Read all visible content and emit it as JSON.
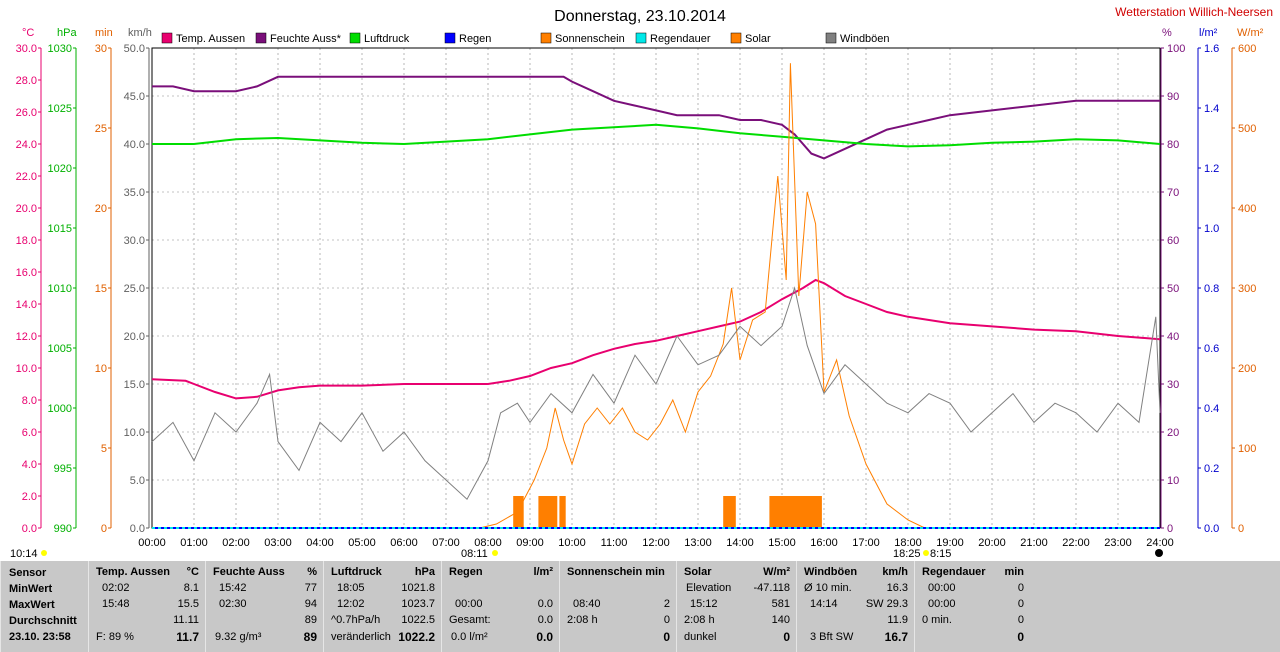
{
  "title": "Donnerstag, 23.10.2014",
  "station": "Wetterstation Willich-Neersen",
  "legend": [
    {
      "label": "Temp. Aussen",
      "color": "#e8006f"
    },
    {
      "label": "Feuchte Auss*",
      "color": "#7a0f7a"
    },
    {
      "label": "Luftdruck",
      "color": "#00dd00"
    },
    {
      "label": "Regen",
      "color": "#0000ff"
    },
    {
      "label": "Sonnenschein",
      "color": "#ff7f00"
    },
    {
      "label": "Regendauer",
      "color": "#00e8e8"
    },
    {
      "label": "Solar",
      "color": "#ff7f00"
    },
    {
      "label": "Windböen",
      "color": "#808080"
    }
  ],
  "axes_left": [
    {
      "unit": "°C",
      "color": "#e8006f",
      "ticks": [
        "30.0",
        "28.0",
        "26.0",
        "24.0",
        "22.0",
        "20.0",
        "18.0",
        "16.0",
        "14.0",
        "12.0",
        "10.0",
        "8.0",
        "6.0",
        "4.0",
        "2.0",
        "0.0"
      ]
    },
    {
      "unit": "hPa",
      "color": "#00b000",
      "ticks": [
        "1030",
        "1025",
        "1020",
        "1015",
        "1010",
        "1005",
        "1000",
        "995",
        "990"
      ]
    },
    {
      "unit": "min",
      "color": "#e06000",
      "ticks": [
        "30",
        "25",
        "20",
        "15",
        "10",
        "5",
        "0"
      ]
    },
    {
      "unit": "km/h",
      "color": "#606060",
      "ticks": [
        "50.0",
        "45.0",
        "40.0",
        "35.0",
        "30.0",
        "25.0",
        "20.0",
        "15.0",
        "10.0",
        "5.0",
        "0.0"
      ]
    }
  ],
  "axes_right": [
    {
      "unit": "%",
      "color": "#7a0f7a",
      "ticks": [
        "100",
        "90",
        "80",
        "70",
        "60",
        "50",
        "40",
        "30",
        "20",
        "10",
        "0"
      ]
    },
    {
      "unit": "l/m²",
      "color": "#0000cc",
      "ticks": [
        "1.6",
        "1.4",
        "1.2",
        "1.0",
        "0.8",
        "0.6",
        "0.4",
        "0.2",
        "0.0"
      ]
    },
    {
      "unit": "W/m²",
      "color": "#e06000",
      "ticks": [
        "600",
        "500",
        "400",
        "300",
        "200",
        "100",
        "0"
      ]
    }
  ],
  "x_ticks": [
    "00:00",
    "01:00",
    "02:00",
    "03:00",
    "04:00",
    "05:00",
    "06:00",
    "07:00",
    "08:00",
    "09:00",
    "10:00",
    "11:00",
    "12:00",
    "13:00",
    "14:00",
    "15:00",
    "16:00",
    "17:00",
    "18:00",
    "19:00",
    "20:00",
    "21:00",
    "22:00",
    "23:00",
    "24:00"
  ],
  "markers": {
    "left": "10:14",
    "sunrise": "08:11",
    "sunset": "18:25",
    "sunset2": "8:15"
  },
  "chart_data": {
    "type": "line",
    "x_range_hours": [
      0,
      24
    ],
    "series": [
      {
        "name": "Temp. Aussen",
        "unit": "°C",
        "range": [
          0,
          30
        ],
        "color": "#e8006f",
        "points": [
          [
            0,
            9.3
          ],
          [
            0.8,
            9.2
          ],
          [
            1,
            9.0
          ],
          [
            1.5,
            8.5
          ],
          [
            2,
            8.1
          ],
          [
            2.5,
            8.2
          ],
          [
            3,
            8.6
          ],
          [
            3.5,
            8.8
          ],
          [
            4,
            8.9
          ],
          [
            5,
            8.9
          ],
          [
            6,
            9.0
          ],
          [
            7,
            9.0
          ],
          [
            8,
            9.0
          ],
          [
            8.5,
            9.2
          ],
          [
            9,
            9.5
          ],
          [
            9.5,
            10.0
          ],
          [
            10,
            10.3
          ],
          [
            10.5,
            10.8
          ],
          [
            11,
            11.2
          ],
          [
            11.5,
            11.5
          ],
          [
            12,
            11.7
          ],
          [
            12.5,
            12.0
          ],
          [
            13,
            12.3
          ],
          [
            13.5,
            12.6
          ],
          [
            14,
            12.9
          ],
          [
            14.5,
            13.5
          ],
          [
            15,
            14.3
          ],
          [
            15.5,
            15.0
          ],
          [
            15.8,
            15.5
          ],
          [
            16,
            15.3
          ],
          [
            16.5,
            14.5
          ],
          [
            17,
            14.0
          ],
          [
            17.5,
            13.5
          ],
          [
            18,
            13.2
          ],
          [
            19,
            12.8
          ],
          [
            20,
            12.6
          ],
          [
            21,
            12.4
          ],
          [
            22,
            12.3
          ],
          [
            23,
            12.0
          ],
          [
            24,
            11.8
          ]
        ]
      },
      {
        "name": "Feuchte Auss*",
        "unit": "%",
        "range": [
          0,
          100
        ],
        "color": "#7a0f7a",
        "points": [
          [
            0,
            92
          ],
          [
            0.5,
            92
          ],
          [
            1,
            91
          ],
          [
            2,
            91
          ],
          [
            2.5,
            92
          ],
          [
            3,
            94
          ],
          [
            4,
            94
          ],
          [
            5,
            94
          ],
          [
            6,
            94
          ],
          [
            7,
            94
          ],
          [
            8,
            94
          ],
          [
            9,
            94
          ],
          [
            9.8,
            94
          ],
          [
            10,
            93
          ],
          [
            10.5,
            91
          ],
          [
            11,
            89
          ],
          [
            11.5,
            88
          ],
          [
            12,
            87
          ],
          [
            12.5,
            86
          ],
          [
            13,
            86
          ],
          [
            13.5,
            86
          ],
          [
            14,
            85
          ],
          [
            14.5,
            85
          ],
          [
            15,
            84
          ],
          [
            15.3,
            82
          ],
          [
            15.7,
            78
          ],
          [
            16,
            77
          ],
          [
            16.5,
            79
          ],
          [
            17,
            81
          ],
          [
            17.5,
            83
          ],
          [
            18,
            84
          ],
          [
            18.5,
            85
          ],
          [
            19,
            86
          ],
          [
            20,
            87
          ],
          [
            21,
            88
          ],
          [
            22,
            89
          ],
          [
            23,
            89
          ],
          [
            24,
            89
          ]
        ]
      },
      {
        "name": "Luftdruck",
        "unit": "hPa",
        "range": [
          990,
          1030
        ],
        "color": "#00dd00",
        "points": [
          [
            0,
            1022.0
          ],
          [
            1,
            1022.0
          ],
          [
            2,
            1022.4
          ],
          [
            3,
            1022.5
          ],
          [
            4,
            1022.3
          ],
          [
            5,
            1022.1
          ],
          [
            6,
            1022.0
          ],
          [
            7,
            1022.2
          ],
          [
            8,
            1022.4
          ],
          [
            9,
            1022.8
          ],
          [
            10,
            1023.2
          ],
          [
            11,
            1023.4
          ],
          [
            12,
            1023.6
          ],
          [
            13,
            1023.3
          ],
          [
            14,
            1022.9
          ],
          [
            15,
            1022.6
          ],
          [
            16,
            1022.3
          ],
          [
            17,
            1022.0
          ],
          [
            18,
            1021.8
          ],
          [
            19,
            1021.9
          ],
          [
            20,
            1022.1
          ],
          [
            21,
            1022.2
          ],
          [
            22,
            1022.4
          ],
          [
            23,
            1022.3
          ],
          [
            24,
            1022.0
          ]
        ]
      },
      {
        "name": "Solar",
        "unit": "W/m²",
        "range": [
          0,
          600
        ],
        "color": "#ff7f00",
        "points": [
          [
            7.8,
            0
          ],
          [
            8.2,
            5
          ],
          [
            8.7,
            20
          ],
          [
            9.1,
            60
          ],
          [
            9.4,
            100
          ],
          [
            9.6,
            150
          ],
          [
            9.8,
            110
          ],
          [
            10.0,
            80
          ],
          [
            10.3,
            130
          ],
          [
            10.6,
            150
          ],
          [
            10.9,
            130
          ],
          [
            11.2,
            150
          ],
          [
            11.5,
            120
          ],
          [
            11.8,
            110
          ],
          [
            12.1,
            130
          ],
          [
            12.4,
            160
          ],
          [
            12.7,
            120
          ],
          [
            13.0,
            170
          ],
          [
            13.3,
            190
          ],
          [
            13.6,
            230
          ],
          [
            13.8,
            300
          ],
          [
            14.0,
            210
          ],
          [
            14.3,
            260
          ],
          [
            14.6,
            270
          ],
          [
            14.9,
            440
          ],
          [
            15.1,
            310
          ],
          [
            15.2,
            581
          ],
          [
            15.4,
            290
          ],
          [
            15.6,
            420
          ],
          [
            15.8,
            380
          ],
          [
            16.0,
            170
          ],
          [
            16.3,
            210
          ],
          [
            16.6,
            140
          ],
          [
            17.0,
            80
          ],
          [
            17.5,
            30
          ],
          [
            18.0,
            10
          ],
          [
            18.4,
            0
          ]
        ]
      },
      {
        "name": "Windböen",
        "unit": "km/h",
        "range": [
          0,
          50
        ],
        "color": "#808080",
        "points": [
          [
            0,
            9
          ],
          [
            0.5,
            11
          ],
          [
            1,
            7
          ],
          [
            1.5,
            12
          ],
          [
            2,
            10
          ],
          [
            2.5,
            13
          ],
          [
            2.8,
            16
          ],
          [
            3,
            9
          ],
          [
            3.5,
            6
          ],
          [
            4,
            11
          ],
          [
            4.5,
            9
          ],
          [
            5,
            12
          ],
          [
            5.5,
            8
          ],
          [
            6,
            10
          ],
          [
            6.5,
            7
          ],
          [
            7,
            5
          ],
          [
            7.5,
            3
          ],
          [
            8,
            7
          ],
          [
            8.3,
            12
          ],
          [
            8.7,
            13
          ],
          [
            9,
            11
          ],
          [
            9.5,
            14
          ],
          [
            10,
            12
          ],
          [
            10.5,
            16
          ],
          [
            11,
            13
          ],
          [
            11.5,
            18
          ],
          [
            12,
            15
          ],
          [
            12.5,
            20
          ],
          [
            13,
            17
          ],
          [
            13.5,
            18
          ],
          [
            14,
            21
          ],
          [
            14.5,
            19
          ],
          [
            15,
            21
          ],
          [
            15.3,
            25
          ],
          [
            15.6,
            19
          ],
          [
            16,
            14
          ],
          [
            16.5,
            17
          ],
          [
            17,
            15
          ],
          [
            17.5,
            13
          ],
          [
            18,
            12
          ],
          [
            18.5,
            14
          ],
          [
            19,
            13
          ],
          [
            19.5,
            10
          ],
          [
            20,
            12
          ],
          [
            20.5,
            14
          ],
          [
            21,
            11
          ],
          [
            21.5,
            13
          ],
          [
            22,
            12
          ],
          [
            22.5,
            10
          ],
          [
            23,
            13
          ],
          [
            23.5,
            11
          ],
          [
            23.9,
            22
          ],
          [
            24,
            12
          ]
        ]
      },
      {
        "name": "Sonnenschein",
        "unit": "min",
        "range": [
          0,
          30
        ],
        "color": "#ff7f00",
        "bars": [
          [
            8.6,
            8.85,
            2
          ],
          [
            9.2,
            9.65,
            2
          ],
          [
            9.7,
            9.85,
            2
          ],
          [
            13.6,
            13.9,
            2
          ],
          [
            14.7,
            15.95,
            2
          ]
        ]
      },
      {
        "name": "Regen",
        "unit": "l/m²",
        "range": [
          0,
          1.6
        ],
        "color": "#0000ff",
        "points": [
          [
            0,
            0
          ],
          [
            24,
            0
          ]
        ]
      },
      {
        "name": "Regendauer",
        "unit": "min",
        "range": [
          0,
          30
        ],
        "color": "#00e8e8",
        "points": [
          [
            0,
            0
          ],
          [
            24,
            0
          ]
        ]
      }
    ]
  },
  "footer": {
    "sensor": {
      "head": "Sensor",
      "rows": [
        "MinWert",
        "MaxWert",
        "Durchschnitt",
        "23.10. 23:58"
      ]
    },
    "temp": {
      "head": "Temp. Aussen",
      "unit": "°C",
      "min_t": "02:02",
      "min_v": "8.1",
      "max_t": "15:48",
      "max_v": "15.5",
      "avg": "11.11",
      "f_label": "F: 89 %",
      "now": "11.7"
    },
    "feuchte": {
      "head": "Feuchte Auss",
      "unit": "%",
      "min_t": "15:42",
      "min_v": "77",
      "max_t": "02:30",
      "max_v": "94",
      "avg": "89",
      "abs": "9.32 g/m³",
      "now": "89"
    },
    "luft": {
      "head": "Luftdruck",
      "unit": "hPa",
      "min_t": "18:05",
      "min_v": "1021.8",
      "max_t": "12:02",
      "max_v": "1023.7",
      "trend_l": "^0.7hPa/h",
      "trend_v": "1022.5",
      "state": "veränderlich",
      "now": "1022.2"
    },
    "regen": {
      "head": "Regen",
      "unit": "l/m²",
      "max_t": "00:00",
      "max_v": "0.0",
      "ges_l": "Gesamt:",
      "ges_v": "0.0",
      "now_l": "0.0 l/m²",
      "now": "0.0"
    },
    "sonne": {
      "head": "Sonnenschein min",
      "max_t": "08:40",
      "max_v": "2",
      "dur": "2:08 h",
      "dur_v": "0",
      "now": "0"
    },
    "solar": {
      "head": "Solar",
      "unit": "W/m²",
      "elev_l": "Elevation",
      "elev_v": "-47.118",
      "max_t": "15:12",
      "max_v": "581",
      "dur": "2:08 h",
      "dur_v": "140",
      "state": "dunkel",
      "now": "0"
    },
    "wind": {
      "head": "Windböen",
      "unit": "km/h",
      "avg_l": "Ø 10 min.",
      "avg_v": "16.3",
      "max_t": "14:14",
      "max_dir": "SW 29.3",
      "avg": "11.9",
      "bft": "3 Bft SW",
      "now": "16.7"
    },
    "regend": {
      "head": "Regendauer",
      "unit": "min",
      "min_t": "00:00",
      "min_v": "0",
      "max_t": "00:00",
      "max_v": "0",
      "avg_l": "0 min.",
      "avg_v": "0",
      "now": "0"
    }
  }
}
